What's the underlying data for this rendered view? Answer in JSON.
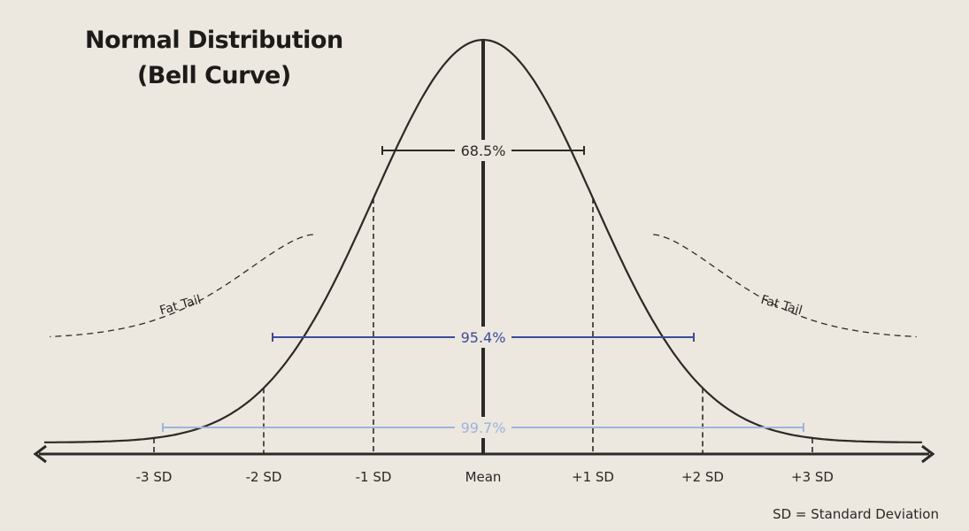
{
  "title": {
    "line1": "Normal Distribution",
    "line2": "(Bell Curve)"
  },
  "axis": {
    "ticks": [
      {
        "sd": -3,
        "label": "-3 SD"
      },
      {
        "sd": -2,
        "label": "-2 SD"
      },
      {
        "sd": -1,
        "label": "-1 SD"
      },
      {
        "sd": 0,
        "label": "Mean"
      },
      {
        "sd": 1,
        "label": "+1 SD"
      },
      {
        "sd": 2,
        "label": "+2 SD"
      },
      {
        "sd": 3,
        "label": "+3 SD"
      }
    ]
  },
  "intervals": [
    {
      "from_sd": -1,
      "to_sd": 1,
      "label": "68.5%",
      "color": "#2b2a28"
    },
    {
      "from_sd": -2,
      "to_sd": 2,
      "label": "95.4%",
      "color": "#3d4a9a"
    },
    {
      "from_sd": -3,
      "to_sd": 3,
      "label": "99.7%",
      "color": "#9db4dc"
    }
  ],
  "tail_labels": {
    "left": "Fat Tail",
    "right": "Fat Tail"
  },
  "footnote": "SD = Standard Deviation",
  "colors": {
    "background": "#ece7df",
    "curve": "#2b2a28",
    "mean_line": "#2b2a28"
  }
}
